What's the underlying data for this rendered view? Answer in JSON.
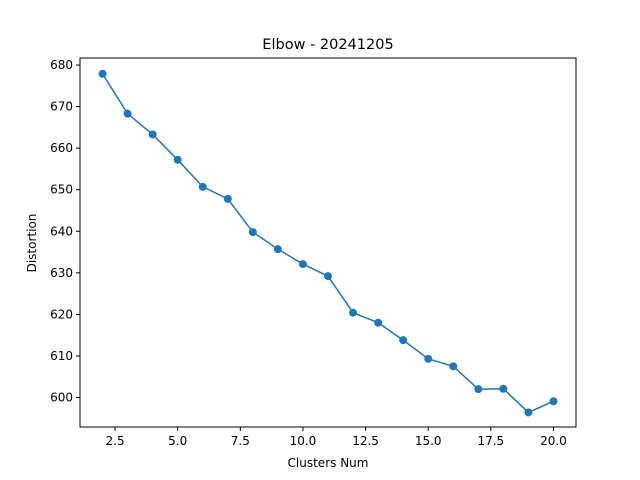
{
  "chart_data": {
    "type": "line",
    "title": "Elbow - 20241205",
    "xlabel": "Clusters Num",
    "ylabel": "Distortion",
    "xlim": [
      1.1,
      20.9
    ],
    "ylim": [
      592.9,
      681.7
    ],
    "xticks": [
      2.5,
      5.0,
      7.5,
      10.0,
      12.5,
      15.0,
      17.5,
      20.0
    ],
    "xtick_labels": [
      "2.5",
      "5.0",
      "7.5",
      "10.0",
      "12.5",
      "15.0",
      "17.5",
      "20.0"
    ],
    "yticks": [
      600,
      610,
      620,
      630,
      640,
      650,
      660,
      670,
      680
    ],
    "ytick_labels": [
      "600",
      "610",
      "620",
      "630",
      "640",
      "650",
      "660",
      "670",
      "680"
    ],
    "grid": false,
    "color": "#1f77b4",
    "marker": "circle",
    "series": [
      {
        "x": [
          2,
          3,
          4,
          5,
          6,
          7,
          8,
          9,
          10,
          11,
          12,
          13,
          14,
          15,
          16,
          17,
          18,
          19,
          20
        ],
        "y": [
          677.9,
          668.3,
          663.3,
          657.2,
          650.7,
          647.8,
          639.8,
          635.7,
          632.1,
          629.2,
          620.4,
          618.0,
          613.8,
          609.3,
          607.5,
          602.0,
          602.1,
          596.4,
          599.1
        ]
      }
    ]
  }
}
